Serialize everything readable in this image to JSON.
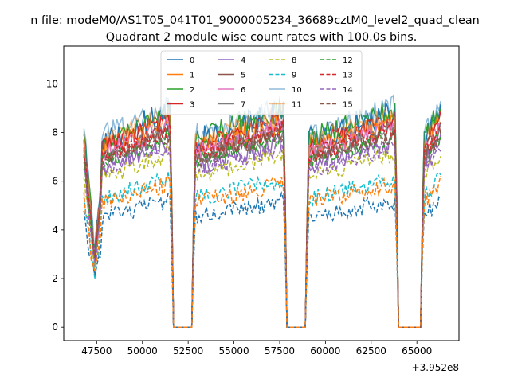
{
  "chart_data": {
    "type": "line",
    "suptitle": "n file: modeM0/AS1T05_041T01_9000005234_36689cztM0_level2_quad_clean",
    "title": "Quadrant 2 module wise count rates with 100.0s bins.",
    "xlabel": "",
    "ylabel": "",
    "offset_label": "+3.952e8",
    "xlim": [
      45700,
      67300
    ],
    "ylim": [
      -0.55,
      11.55
    ],
    "xticks": [
      47500,
      50000,
      52500,
      55000,
      57500,
      60000,
      62500,
      65000
    ],
    "xtick_labels": [
      "47500",
      "50000",
      "52500",
      "55000",
      "57500",
      "60000",
      "62500",
      "65000"
    ],
    "yticks": [
      0,
      2,
      4,
      6,
      8,
      10
    ],
    "ytick_labels": [
      "0",
      "2",
      "4",
      "6",
      "8",
      "10"
    ],
    "grid": false,
    "legend_position": "top-center",
    "bin_seconds": 100,
    "x_start": 46800,
    "x_end": 66300,
    "gaps": [
      [
        51600,
        52800
      ],
      [
        57800,
        59000
      ],
      [
        63900,
        65300
      ]
    ],
    "colors": {
      "axes": "#000000",
      "background": "#ffffff",
      "palette": [
        "#1f77b4",
        "#ff7f0e",
        "#2ca02c",
        "#d62728",
        "#9467bd",
        "#8c564b",
        "#e377c2",
        "#7f7f7f",
        "#bcbd22",
        "#17becf"
      ]
    },
    "series": [
      {
        "name": "0",
        "style": "solid",
        "level": 8.7,
        "noise": 0.55,
        "color": "#1f77b4"
      },
      {
        "name": "1",
        "style": "solid",
        "level": 8.3,
        "noise": 0.5,
        "color": "#ff7f0e"
      },
      {
        "name": "2",
        "style": "solid",
        "level": 8.8,
        "noise": 0.45,
        "color": "#2ca02c"
      },
      {
        "name": "3",
        "style": "solid",
        "level": 8.4,
        "noise": 0.4,
        "color": "#d62728"
      },
      {
        "name": "4",
        "style": "solid",
        "level": 7.5,
        "noise": 0.4,
        "color": "#9467bd"
      },
      {
        "name": "5",
        "style": "solid",
        "level": 8.0,
        "noise": 0.4,
        "color": "#8c564b"
      },
      {
        "name": "6",
        "style": "solid",
        "level": 8.1,
        "noise": 0.4,
        "color": "#e377c2"
      },
      {
        "name": "7",
        "style": "solid",
        "level": 7.9,
        "noise": 0.4,
        "color": "#7f7f7f"
      },
      {
        "name": "8",
        "style": "dashed",
        "level": 7.0,
        "noise": 0.35,
        "color": "#bcbd22"
      },
      {
        "name": "9",
        "style": "dashed",
        "level": 6.0,
        "noise": 0.35,
        "color": "#17becf"
      },
      {
        "name": "10",
        "style": "solid",
        "level": 8.9,
        "noise": 0.5,
        "color": "#1f77b4",
        "alpha": 0.5
      },
      {
        "name": "11",
        "style": "solid",
        "level": 8.6,
        "noise": 0.45,
        "color": "#ff7f0e",
        "alpha": 0.5
      },
      {
        "name": "12",
        "style": "dashed",
        "level": 7.7,
        "noise": 0.35,
        "color": "#2ca02c"
      },
      {
        "name": "13",
        "style": "dashed",
        "level": 8.0,
        "noise": 0.35,
        "color": "#d62728"
      },
      {
        "name": "14",
        "style": "dashed",
        "level": 7.3,
        "noise": 0.35,
        "color": "#9467bd"
      },
      {
        "name": "15",
        "style": "dashed",
        "level": 7.8,
        "noise": 0.35,
        "color": "#8c564b"
      },
      {
        "name": "0d",
        "style": "dashed",
        "level": 5.1,
        "noise": 0.35,
        "color": "#1f77b4",
        "hidden_in_legend": true
      },
      {
        "name": "1d",
        "style": "dashed",
        "level": 5.8,
        "noise": 0.35,
        "color": "#ff7f0e",
        "hidden_in_legend": true
      }
    ]
  }
}
